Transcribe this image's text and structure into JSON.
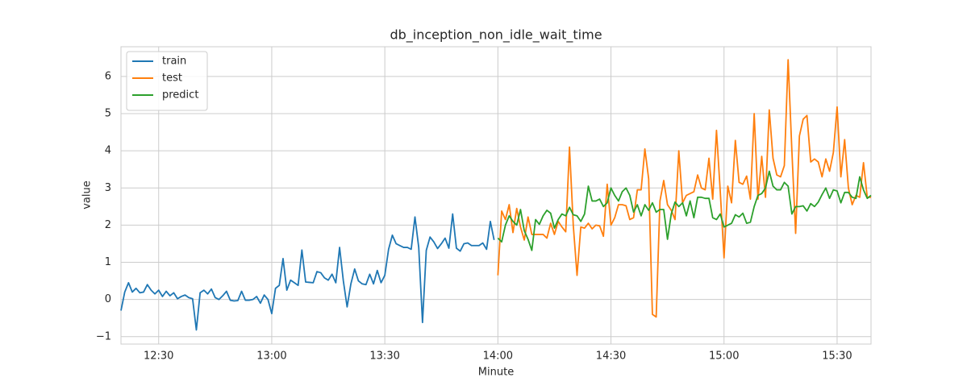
{
  "chart_data": {
    "type": "line",
    "title": "db_inception_non_idle_wait_time",
    "xlabel": "Minute",
    "ylabel": "value",
    "x": [
      "12:20",
      "12:21",
      "12:22",
      "12:23",
      "12:24",
      "12:25",
      "12:26",
      "12:27",
      "12:28",
      "12:29",
      "12:30",
      "12:31",
      "12:32",
      "12:33",
      "12:34",
      "12:35",
      "12:36",
      "12:37",
      "12:38",
      "12:39",
      "12:40",
      "12:41",
      "12:42",
      "12:43",
      "12:44",
      "12:45",
      "12:46",
      "12:47",
      "12:48",
      "12:49",
      "12:50",
      "12:51",
      "12:52",
      "12:53",
      "12:54",
      "12:55",
      "12:56",
      "12:57",
      "12:58",
      "12:59",
      "13:00",
      "13:01",
      "13:02",
      "13:03",
      "13:04",
      "13:05",
      "13:06",
      "13:07",
      "13:08",
      "13:09",
      "13:10",
      "13:11",
      "13:12",
      "13:13",
      "13:14",
      "13:15",
      "13:16",
      "13:17",
      "13:18",
      "13:19",
      "13:20",
      "13:21",
      "13:22",
      "13:23",
      "13:24",
      "13:25",
      "13:26",
      "13:27",
      "13:28",
      "13:29",
      "13:30",
      "13:31",
      "13:32",
      "13:33",
      "13:34",
      "13:35",
      "13:36",
      "13:37",
      "13:38",
      "13:39",
      "13:40",
      "13:41",
      "13:42",
      "13:43",
      "13:44",
      "13:45",
      "13:46",
      "13:47",
      "13:48",
      "13:49",
      "13:50",
      "13:51",
      "13:52",
      "13:53",
      "13:54",
      "13:55",
      "13:56",
      "13:57",
      "13:58",
      "13:59",
      "14:00",
      "14:01",
      "14:02",
      "14:03",
      "14:04",
      "14:05",
      "14:06",
      "14:07",
      "14:08",
      "14:09",
      "14:10",
      "14:11",
      "14:12",
      "14:13",
      "14:14",
      "14:15",
      "14:16",
      "14:17",
      "14:18",
      "14:19",
      "14:20",
      "14:21",
      "14:22",
      "14:23",
      "14:24",
      "14:25",
      "14:26",
      "14:27",
      "14:28",
      "14:29",
      "14:30",
      "14:31",
      "14:32",
      "14:33",
      "14:34",
      "14:35",
      "14:36",
      "14:37",
      "14:38",
      "14:39",
      "14:40",
      "14:41",
      "14:42",
      "14:43",
      "14:44",
      "14:45",
      "14:46",
      "14:47",
      "14:48",
      "14:49",
      "14:50",
      "14:51",
      "14:52",
      "14:53",
      "14:54",
      "14:55",
      "14:56",
      "14:57",
      "14:58",
      "14:59",
      "15:00",
      "15:01",
      "15:02",
      "15:03",
      "15:04",
      "15:05",
      "15:06",
      "15:07",
      "15:08",
      "15:09",
      "15:10",
      "15:11",
      "15:12",
      "15:13",
      "15:14",
      "15:15",
      "15:16",
      "15:17",
      "15:18",
      "15:19",
      "15:20",
      "15:21",
      "15:22",
      "15:23",
      "15:24",
      "15:25",
      "15:26",
      "15:27",
      "15:28",
      "15:29",
      "15:30",
      "15:31",
      "15:32",
      "15:33",
      "15:34",
      "15:35",
      "15:36",
      "15:37",
      "15:38",
      "15:39"
    ],
    "series": [
      {
        "name": "train",
        "color": "#1f77b4",
        "values": [
          -0.3,
          0.2,
          0.45,
          0.2,
          0.3,
          0.18,
          0.2,
          0.4,
          0.25,
          0.15,
          0.25,
          0.08,
          0.22,
          0.1,
          0.18,
          0.02,
          0.08,
          0.12,
          0.05,
          0.02,
          -0.82,
          0.18,
          0.25,
          0.15,
          0.28,
          0.05,
          0.0,
          0.1,
          0.22,
          -0.02,
          -0.04,
          -0.03,
          0.22,
          -0.02,
          -0.02,
          0.0,
          0.08,
          -0.1,
          0.12,
          0.0,
          -0.38,
          0.3,
          0.38,
          1.1,
          0.25,
          0.52,
          0.45,
          0.38,
          1.33,
          0.47,
          0.46,
          0.45,
          0.75,
          0.72,
          0.58,
          0.52,
          0.68,
          0.45,
          1.4,
          0.5,
          -0.2,
          0.42,
          0.82,
          0.5,
          0.42,
          0.4,
          0.68,
          0.42,
          0.78,
          0.45,
          0.65,
          1.35,
          1.73,
          1.5,
          1.45,
          1.4,
          1.4,
          1.35,
          2.22,
          1.4,
          -0.62,
          1.32,
          1.68,
          1.55,
          1.37,
          1.5,
          1.65,
          1.38,
          2.3,
          1.38,
          1.3,
          1.5,
          1.52,
          1.45,
          1.45,
          1.45,
          1.52,
          1.35,
          2.1,
          1.6,
          null,
          null,
          null,
          null,
          null,
          null,
          null,
          null,
          null,
          null,
          null,
          null,
          null,
          null,
          null,
          null,
          null,
          null,
          null,
          null,
          null,
          null,
          null,
          null,
          null,
          null,
          null,
          null,
          null,
          null,
          null,
          null,
          null,
          null,
          null,
          null,
          null,
          null,
          null,
          null,
          null,
          null,
          null,
          null,
          null,
          null,
          null,
          null,
          null,
          null,
          null,
          null,
          null,
          null,
          null,
          null,
          null,
          null,
          null,
          null,
          null,
          null,
          null,
          null,
          null,
          null,
          null,
          null,
          null,
          null,
          null,
          null,
          null,
          null,
          null,
          null,
          null,
          null,
          null,
          null,
          null,
          null,
          null,
          null,
          null,
          null,
          null,
          null,
          null,
          null,
          null,
          null,
          null,
          null,
          null,
          null,
          null,
          null,
          null,
          null
        ]
      },
      {
        "name": "test",
        "color": "#ff7f0e",
        "values": [
          null,
          null,
          null,
          null,
          null,
          null,
          null,
          null,
          null,
          null,
          null,
          null,
          null,
          null,
          null,
          null,
          null,
          null,
          null,
          null,
          null,
          null,
          null,
          null,
          null,
          null,
          null,
          null,
          null,
          null,
          null,
          null,
          null,
          null,
          null,
          null,
          null,
          null,
          null,
          null,
          null,
          null,
          null,
          null,
          null,
          null,
          null,
          null,
          null,
          null,
          null,
          null,
          null,
          null,
          null,
          null,
          null,
          null,
          null,
          null,
          null,
          null,
          null,
          null,
          null,
          null,
          null,
          null,
          null,
          null,
          null,
          null,
          null,
          null,
          null,
          null,
          null,
          null,
          null,
          null,
          null,
          null,
          null,
          null,
          null,
          null,
          null,
          null,
          null,
          null,
          null,
          null,
          null,
          null,
          null,
          null,
          null,
          null,
          null,
          null,
          0.65,
          2.38,
          2.15,
          2.55,
          1.8,
          2.45,
          1.95,
          1.6,
          2.22,
          1.75,
          1.75,
          1.75,
          1.75,
          1.65,
          2.05,
          1.75,
          2.1,
          1.95,
          1.82,
          4.1,
          2.0,
          0.65,
          1.95,
          1.92,
          2.05,
          1.9,
          2.0,
          1.98,
          1.7,
          3.1,
          2.0,
          2.2,
          2.55,
          2.55,
          2.52,
          2.15,
          2.2,
          2.95,
          2.95,
          4.05,
          3.25,
          -0.4,
          -0.47,
          2.65,
          3.2,
          2.55,
          2.4,
          2.15,
          4.0,
          2.6,
          2.8,
          2.85,
          2.9,
          3.35,
          3.0,
          2.95,
          3.8,
          2.7,
          4.55,
          2.9,
          1.12,
          3.05,
          2.6,
          4.28,
          3.15,
          3.1,
          3.32,
          2.7,
          5.0,
          2.7,
          3.85,
          2.75,
          5.1,
          3.8,
          3.35,
          3.3,
          3.6,
          6.45,
          4.0,
          1.78,
          4.4,
          4.85,
          4.95,
          3.7,
          3.78,
          3.7,
          3.3,
          3.78,
          3.45,
          3.95,
          5.18,
          3.3,
          4.3,
          3.0,
          2.55,
          2.8,
          2.75,
          3.68,
          2.75,
          2.75
        ]
      },
      {
        "name": "predict",
        "color": "#2ca02c",
        "values": [
          null,
          null,
          null,
          null,
          null,
          null,
          null,
          null,
          null,
          null,
          null,
          null,
          null,
          null,
          null,
          null,
          null,
          null,
          null,
          null,
          null,
          null,
          null,
          null,
          null,
          null,
          null,
          null,
          null,
          null,
          null,
          null,
          null,
          null,
          null,
          null,
          null,
          null,
          null,
          null,
          null,
          null,
          null,
          null,
          null,
          null,
          null,
          null,
          null,
          null,
          null,
          null,
          null,
          null,
          null,
          null,
          null,
          null,
          null,
          null,
          null,
          null,
          null,
          null,
          null,
          null,
          null,
          null,
          null,
          null,
          null,
          null,
          null,
          null,
          null,
          null,
          null,
          null,
          null,
          null,
          null,
          null,
          null,
          null,
          null,
          null,
          null,
          null,
          null,
          null,
          null,
          null,
          null,
          null,
          null,
          null,
          null,
          null,
          null,
          null,
          1.65,
          1.55,
          2.0,
          2.25,
          2.1,
          2.0,
          2.42,
          1.85,
          1.62,
          1.32,
          2.15,
          2.02,
          2.25,
          2.4,
          2.32,
          1.92,
          2.15,
          2.3,
          2.25,
          2.48,
          2.28,
          2.25,
          2.1,
          2.3,
          3.05,
          2.65,
          2.65,
          2.7,
          2.5,
          2.6,
          3.0,
          2.8,
          2.65,
          2.9,
          3.0,
          2.8,
          2.35,
          2.55,
          2.25,
          2.55,
          2.4,
          2.6,
          2.35,
          2.42,
          2.42,
          1.62,
          2.3,
          2.62,
          2.5,
          2.6,
          2.25,
          2.65,
          2.2,
          2.75,
          2.75,
          2.72,
          2.72,
          2.2,
          2.15,
          2.3,
          1.95,
          2.0,
          2.05,
          2.28,
          2.22,
          2.32,
          2.05,
          2.08,
          2.5,
          2.8,
          2.85,
          3.0,
          3.45,
          3.05,
          2.95,
          2.95,
          3.15,
          3.05,
          2.3,
          2.5,
          2.5,
          2.52,
          2.38,
          2.58,
          2.5,
          2.62,
          2.82,
          3.0,
          2.72,
          2.95,
          2.92,
          2.6,
          2.88,
          2.88,
          2.75,
          2.72,
          3.3,
          2.95,
          2.72,
          2.8
        ]
      }
    ],
    "xlim": [
      "12:20",
      "15:39"
    ],
    "xticks": [
      "12:30",
      "13:00",
      "13:30",
      "14:00",
      "14:30",
      "15:00",
      "15:30"
    ],
    "ylim": [
      -1.2,
      6.8
    ],
    "yticks": [
      {
        "value": -1,
        "label": "−1"
      },
      0,
      1,
      2,
      3,
      4,
      5,
      6
    ],
    "grid": true,
    "legend": "upper-left"
  }
}
